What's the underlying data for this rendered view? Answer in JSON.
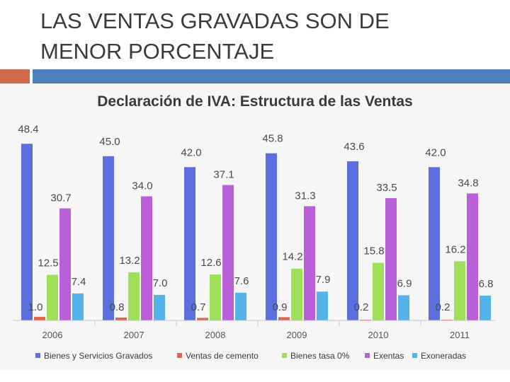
{
  "slide": {
    "title_lines": [
      "LAS VENTAS GRAVADAS SON DE",
      "MENOR PORCENTAJE"
    ]
  },
  "colors": {
    "accent_left": "#d06a4a",
    "accent_right": "#4f81bd"
  },
  "chart_data": {
    "type": "bar",
    "title": "Declaración de IVA: Estructura de las Ventas",
    "categories": [
      "2006",
      "2007",
      "2008",
      "2009",
      "2010",
      "2011"
    ],
    "series": [
      {
        "name": "Bienes y Servicios Gravados",
        "color": "#5b6fdf",
        "values": [
          48.4,
          45.0,
          42.0,
          45.8,
          43.6,
          42.0
        ],
        "labels": [
          "48.4",
          "45.0",
          "42.0",
          "45.8",
          "43.6",
          "42.0"
        ]
      },
      {
        "name": "Ventas de cemento",
        "color": "#e0644a",
        "values": [
          1.0,
          0.8,
          0.7,
          0.9,
          0.2,
          0.2
        ],
        "labels": [
          "1.0",
          "0.8",
          "0.7",
          "0.9",
          "0.2",
          "0.2"
        ]
      },
      {
        "name": "Bienes tasa 0%",
        "color": "#9ee05a",
        "values": [
          12.5,
          13.2,
          12.6,
          14.2,
          15.8,
          16.2
        ],
        "labels": [
          "12.5",
          "13.2",
          "12.6",
          "14.2",
          "15.8",
          "16.2"
        ]
      },
      {
        "name": "Exentas",
        "color": "#b95fd8",
        "values": [
          30.7,
          34.0,
          37.1,
          31.3,
          33.5,
          34.8
        ],
        "labels": [
          "30.7",
          "34.0",
          "37.1",
          "31.3",
          "33.5",
          "34.8"
        ]
      },
      {
        "name": "Exoneradas",
        "color": "#54b4ea",
        "values": [
          7.4,
          7.0,
          7.6,
          7.9,
          6.9,
          6.8
        ],
        "labels": [
          "7.4",
          "7.0",
          "7.6",
          "7.9",
          "6.9",
          "6.8"
        ]
      }
    ],
    "xlabel": "",
    "ylabel": "",
    "ylim": [
      0,
      50
    ],
    "grid": false,
    "legend": "bottom"
  }
}
